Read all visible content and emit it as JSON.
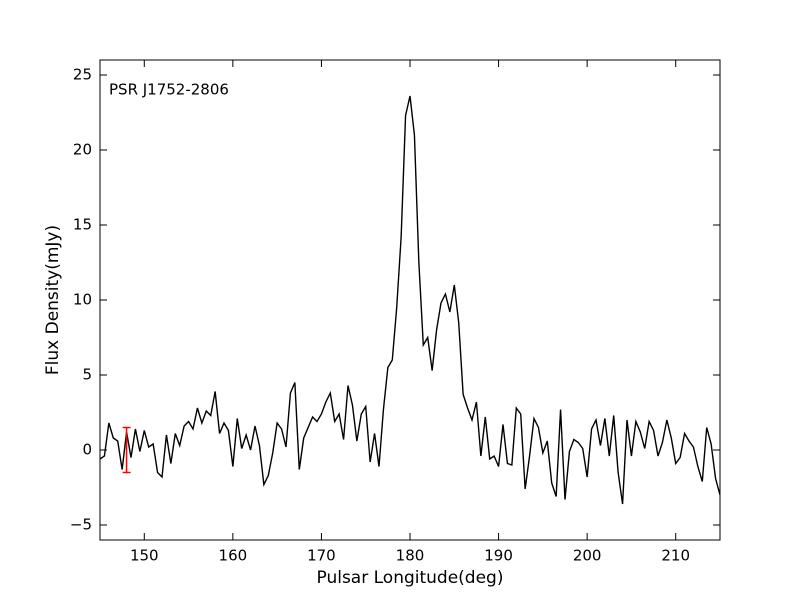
{
  "chart_data": {
    "type": "line",
    "annotation": "PSR J1752-2806",
    "x_label": "Pulsar Longitude(deg)",
    "y_label": "Flux Density(mJy)",
    "x": [
      145,
      145.5,
      146,
      146.5,
      147,
      147.5,
      148,
      148.5,
      149,
      149.5,
      150,
      150.5,
      151,
      151.5,
      152,
      152.5,
      153,
      153.5,
      154,
      154.5,
      155,
      155.5,
      156,
      156.5,
      157,
      157.5,
      158,
      158.5,
      159,
      159.5,
      160,
      160.5,
      161,
      161.5,
      162,
      162.5,
      163,
      163.5,
      164,
      164.5,
      165,
      165.5,
      166,
      166.5,
      167,
      167.5,
      168,
      168.5,
      169,
      169.5,
      170,
      170.5,
      171,
      171.5,
      172,
      172.5,
      173,
      173.5,
      174,
      174.5,
      175,
      175.5,
      176,
      176.5,
      177,
      177.5,
      178,
      178.5,
      179,
      179.5,
      180,
      180.5,
      181,
      181.5,
      182,
      182.5,
      183,
      183.5,
      184,
      184.5,
      185,
      185.5,
      186,
      186.5,
      187,
      187.5,
      188,
      188.5,
      189,
      189.5,
      190,
      190.5,
      191,
      191.5,
      192,
      192.5,
      193,
      193.5,
      194,
      194.5,
      195,
      195.5,
      196,
      196.5,
      197,
      197.5,
      198,
      198.5,
      199,
      199.5,
      200,
      200.5,
      201,
      201.5,
      202,
      202.5,
      203,
      203.5,
      204,
      204.5,
      205,
      205.5,
      206,
      206.5,
      207,
      207.5,
      208,
      208.5,
      209,
      209.5,
      210,
      210.5,
      211,
      211.5,
      212,
      212.5,
      213,
      213.5,
      214,
      214.5,
      215
    ],
    "series": [
      {
        "color": "#000000",
        "values": [
          -0.6,
          -0.4,
          1.8,
          0.8,
          0.6,
          -1.3,
          1.2,
          -0.5,
          1.4,
          -0.1,
          1.3,
          0.2,
          0.4,
          -1.5,
          -1.8,
          1.0,
          -0.9,
          1.1,
          0.3,
          1.6,
          1.9,
          1.4,
          2.8,
          1.8,
          2.6,
          2.3,
          3.9,
          1.1,
          1.8,
          1.3,
          -1.1,
          2.1,
          0.1,
          1.0,
          0.0,
          1.6,
          0.3,
          -2.3,
          -1.7,
          -0.2,
          1.8,
          1.4,
          0.2,
          3.8,
          4.5,
          -1.3,
          0.8,
          1.5,
          2.2,
          1.9,
          2.4,
          3.2,
          3.8,
          1.9,
          2.4,
          0.7,
          4.3,
          3.0,
          0.6,
          2.4,
          2.9,
          -0.8,
          1.1,
          -1.1,
          2.7,
          5.5,
          6.0,
          9.5,
          14.2,
          22.3,
          23.6,
          21.0,
          12.5,
          7.0,
          7.5,
          5.3,
          8.0,
          9.8,
          10.4,
          9.2,
          11.0,
          8.5,
          3.7,
          2.8,
          2.0,
          3.2,
          -0.4,
          2.2,
          -0.6,
          -0.4,
          -1.1,
          1.7,
          -0.9,
          -1.0,
          2.8,
          2.4,
          -2.6,
          -0.4,
          2.1,
          1.5,
          -0.2,
          0.6,
          -2.2,
          -3.1,
          2.7,
          -3.3,
          -0.1,
          0.7,
          0.5,
          0.1,
          -1.8,
          1.4,
          2.0,
          0.3,
          2.1,
          -0.4,
          2.3,
          -1.5,
          -3.6,
          2.0,
          -0.4,
          1.9,
          1.2,
          0.1,
          1.9,
          1.3,
          -0.4,
          0.5,
          2.0,
          0.8,
          -0.9,
          -0.5,
          1.1,
          0.6,
          0.2,
          -1.1,
          -2.1,
          1.5,
          0.4,
          -1.9,
          -3.0
        ]
      }
    ],
    "error_bar": {
      "x": 148,
      "y": 0,
      "error": 1.5,
      "color": "#ff0000"
    },
    "xlim": [
      145,
      215
    ],
    "ylim": [
      -6,
      26
    ],
    "xticks": [
      150,
      160,
      170,
      180,
      190,
      200,
      210
    ],
    "yticks": [
      {
        "value": -5,
        "label": "−5"
      },
      0,
      5,
      10,
      15,
      20,
      25
    ],
    "grid": false
  }
}
